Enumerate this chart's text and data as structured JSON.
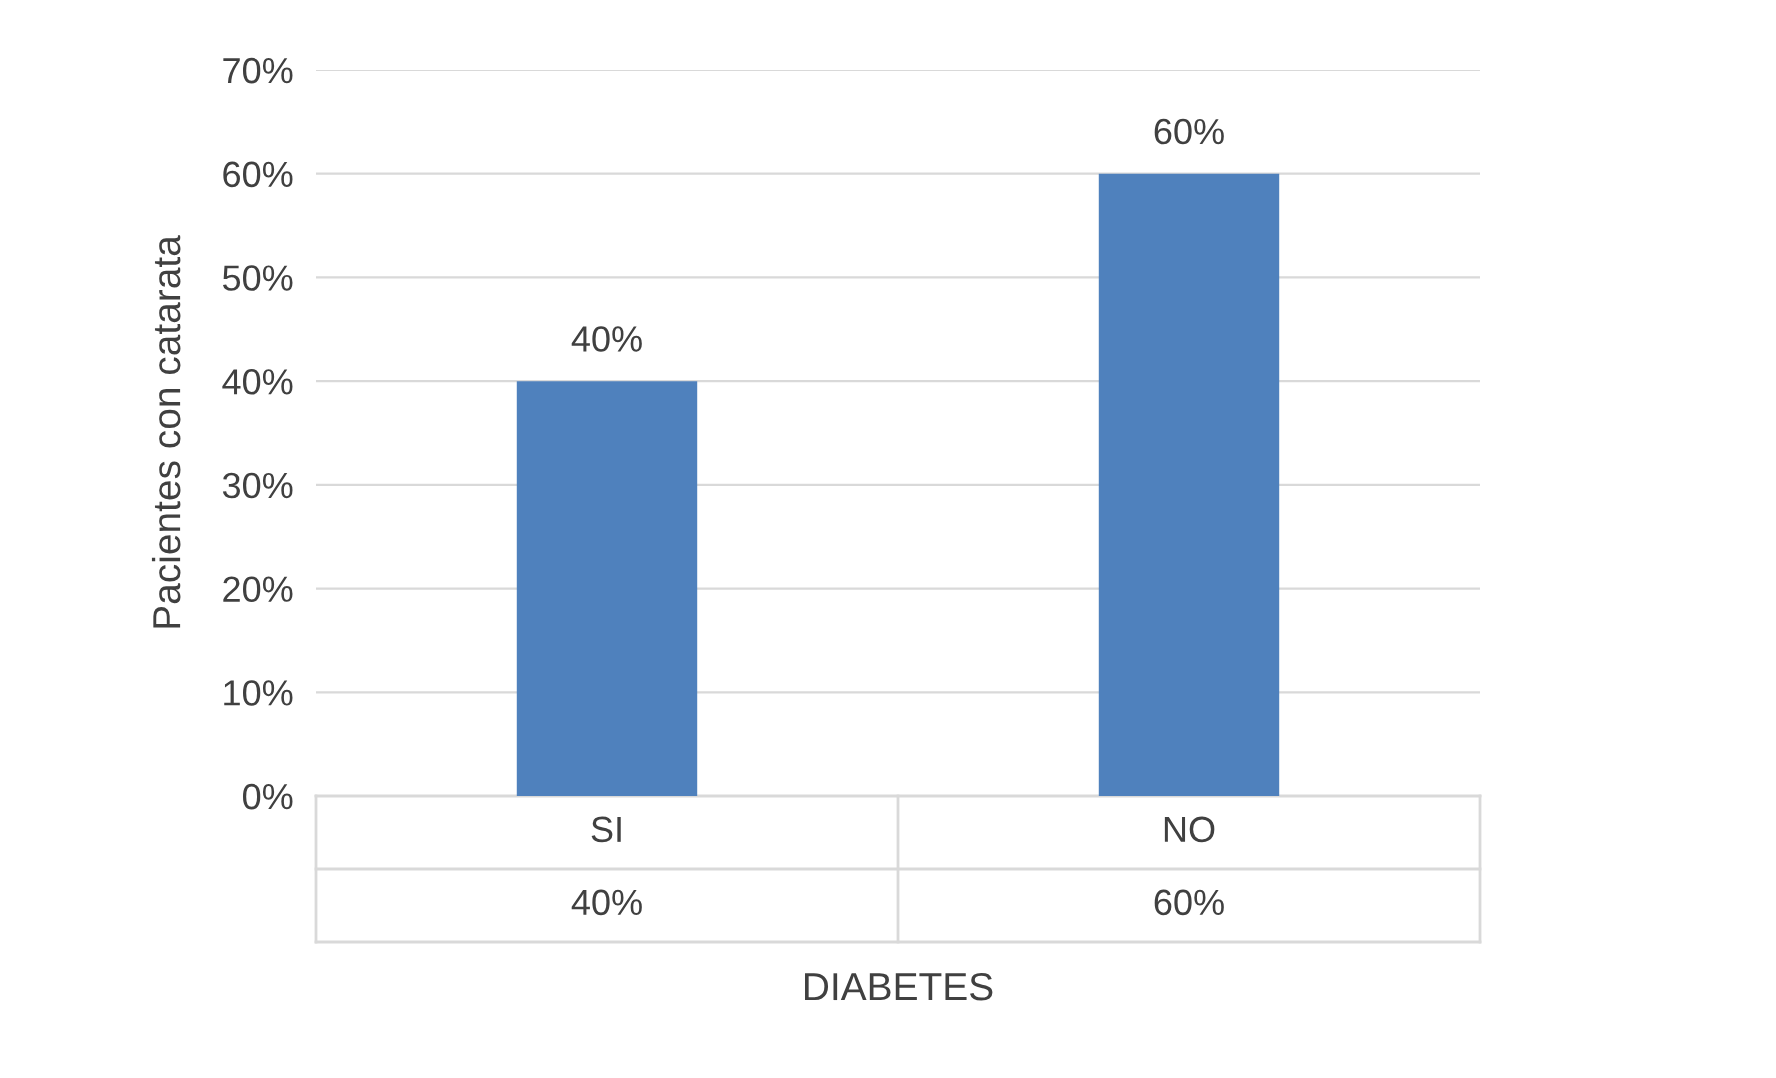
{
  "chart_data": {
    "type": "bar",
    "xlabel": "DIABETES",
    "ylabel": "Pacientes con catarata",
    "categories": [
      "SI",
      "NO"
    ],
    "values": [
      40,
      60
    ],
    "color": "#4f81bd",
    "value_labels": [
      "40%",
      "60%"
    ],
    "ylim": [
      0,
      70
    ],
    "yticks": [
      {
        "value": 0,
        "label": "0%"
      },
      {
        "value": 10,
        "label": "10%"
      },
      {
        "value": 20,
        "label": "20%"
      },
      {
        "value": 30,
        "label": "30%"
      },
      {
        "value": 40,
        "label": "40%"
      },
      {
        "value": 50,
        "label": "50%"
      },
      {
        "value": 60,
        "label": "60%"
      },
      {
        "value": 70,
        "label": "70%"
      }
    ],
    "grid": "y"
  }
}
